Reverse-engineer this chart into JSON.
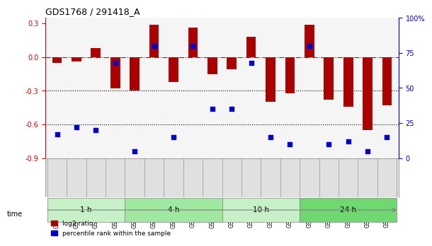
{
  "title": "GDS1768 / 291418_A",
  "samples": [
    "GSM25346",
    "GSM25347",
    "GSM25354",
    "GSM25704",
    "GSM25705",
    "GSM25706",
    "GSM25707",
    "GSM25708",
    "GSM25709",
    "GSM25710",
    "GSM25711",
    "GSM25712",
    "GSM25713",
    "GSM25714",
    "GSM25715",
    "GSM25716",
    "GSM25717",
    "GSM25718"
  ],
  "log2_ratio": [
    -0.05,
    -0.04,
    0.08,
    -0.28,
    -0.3,
    0.29,
    -0.22,
    0.26,
    -0.15,
    -0.11,
    0.18,
    -0.4,
    -0.32,
    0.29,
    -0.38,
    -0.44,
    -0.65,
    -0.43
  ],
  "percentile": [
    17,
    22,
    20,
    68,
    5,
    80,
    15,
    80,
    35,
    35,
    68,
    15,
    10,
    80,
    10,
    12,
    5,
    15
  ],
  "groups": [
    {
      "label": "1 h",
      "start": 0,
      "end": 3,
      "color": "#c8f0c8"
    },
    {
      "label": "4 h",
      "start": 4,
      "end": 8,
      "color": "#a0e8a0"
    },
    {
      "label": "10 h",
      "start": 9,
      "end": 12,
      "color": "#c8f0c8"
    },
    {
      "label": "24 h",
      "start": 13,
      "end": 17,
      "color": "#70d870"
    }
  ],
  "bar_color": "#aa0000",
  "dot_color": "#0000cc",
  "bar_width": 0.5,
  "ylim_left": [
    -0.9,
    0.35
  ],
  "ylim_right": [
    0,
    100
  ],
  "yticks_left": [
    -0.9,
    -0.6,
    -0.3,
    0.0,
    0.3
  ],
  "yticks_right": [
    0,
    25,
    50,
    75,
    100
  ],
  "hline_y": 0.0,
  "dotted_lines": [
    -0.3,
    -0.6
  ],
  "bg_color": "#ffffff",
  "plot_bg_color": "#f5f5f5",
  "tick_label_color_left": "#cc0000",
  "tick_label_color_right": "#0000cc",
  "legend_items": [
    "log2 ratio",
    "percentile rank within the sample"
  ],
  "legend_colors": [
    "#aa0000",
    "#0000cc"
  ],
  "time_label": "time"
}
